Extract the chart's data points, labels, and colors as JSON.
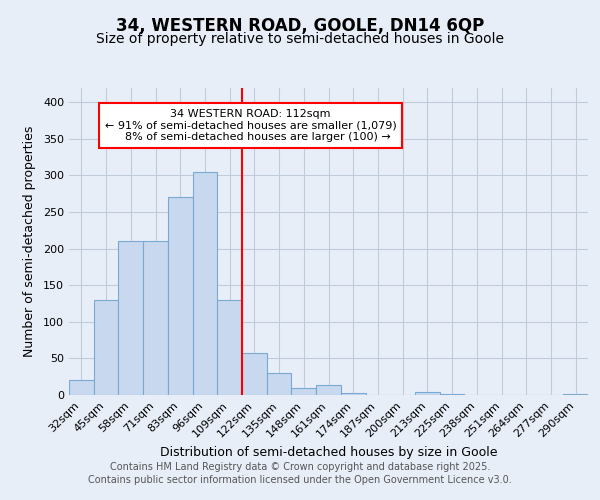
{
  "title1": "34, WESTERN ROAD, GOOLE, DN14 6QP",
  "title2": "Size of property relative to semi-detached houses in Goole",
  "xlabel": "Distribution of semi-detached houses by size in Goole",
  "ylabel": "Number of semi-detached properties",
  "categories": [
    "32sqm",
    "45sqm",
    "58sqm",
    "71sqm",
    "83sqm",
    "96sqm",
    "109sqm",
    "122sqm",
    "135sqm",
    "148sqm",
    "161sqm",
    "174sqm",
    "187sqm",
    "200sqm",
    "213sqm",
    "225sqm",
    "238sqm",
    "251sqm",
    "264sqm",
    "277sqm",
    "290sqm"
  ],
  "values": [
    20,
    130,
    210,
    210,
    270,
    305,
    130,
    57,
    30,
    10,
    13,
    3,
    0,
    0,
    4,
    2,
    0,
    0,
    0,
    0,
    2
  ],
  "bar_color": "#c8d8ee",
  "bar_edgecolor": "#7aaad4",
  "bar_width": 1.0,
  "vline_color": "red",
  "annotation_text": "34 WESTERN ROAD: 112sqm\n← 91% of semi-detached houses are smaller (1,079)\n    8% of semi-detached houses are larger (100) →",
  "annotation_box_color": "red",
  "annotation_fill": "white",
  "ylim": [
    0,
    420
  ],
  "yticks": [
    0,
    50,
    100,
    150,
    200,
    250,
    300,
    350,
    400
  ],
  "footer1": "Contains HM Land Registry data © Crown copyright and database right 2025.",
  "footer2": "Contains public sector information licensed under the Open Government Licence v3.0.",
  "bg_color": "#e8eef8",
  "plot_bg_color": "#e8eef8",
  "grid_color": "#c0ccdc",
  "title_fontsize": 12,
  "subtitle_fontsize": 10,
  "axis_fontsize": 9,
  "tick_fontsize": 8,
  "footer_fontsize": 7
}
